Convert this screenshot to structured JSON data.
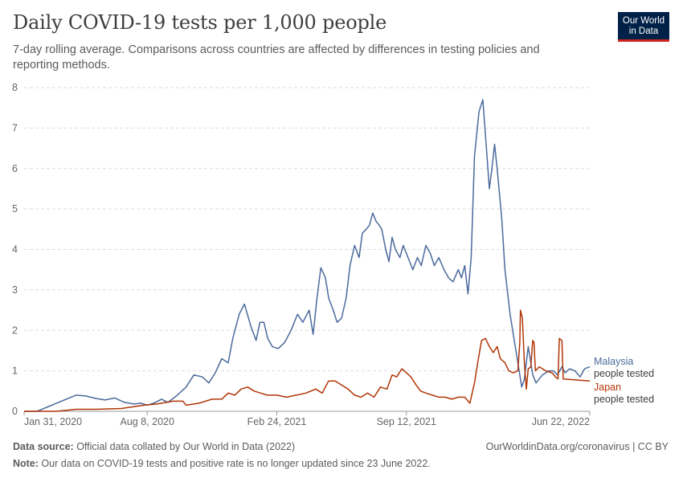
{
  "header": {
    "title": "Daily COVID-19 tests per 1,000 people",
    "subtitle": "7-day rolling average. Comparisons across countries are affected by differences in testing policies and reporting methods."
  },
  "logo": {
    "line1": "Our World",
    "line2": "in Data",
    "bg_color": "#002147",
    "accent_color": "#ce261e"
  },
  "footer": {
    "source_label": "Data source:",
    "source_text": " Official data collated by Our World in Data (2022)",
    "url_text": "OurWorldinData.org/coronavirus | CC BY",
    "note_label": "Note:",
    "note_text": " Our data on COVID-19 tests and positive rate is no longer updated since 23 June 2022."
  },
  "chart_data": {
    "type": "line",
    "title": "Daily COVID-19 tests per 1,000 people",
    "xlabel": "",
    "ylabel": "",
    "ylim": [
      0,
      8
    ],
    "y_ticks": [
      0,
      1,
      2,
      3,
      4,
      5,
      6,
      7,
      8
    ],
    "x_unit": "days since Jan 31, 2020",
    "xlim": [
      0,
      873
    ],
    "x_tick_labels": [
      "Jan 31, 2020",
      "Aug 8, 2020",
      "Feb 24, 2021",
      "Sep 12, 2021",
      "Jun 22, 2022"
    ],
    "x_tick_values": [
      0,
      190,
      390,
      590,
      873
    ],
    "grid": "horizontal dashed",
    "series": [
      {
        "name": "Malaysia",
        "sublabel": "people tested",
        "color": "#4c6a9c",
        "points": [
          [
            0,
            0
          ],
          [
            20,
            0
          ],
          [
            35,
            0.1
          ],
          [
            50,
            0.2
          ],
          [
            65,
            0.3
          ],
          [
            80,
            0.4
          ],
          [
            95,
            0.38
          ],
          [
            110,
            0.32
          ],
          [
            125,
            0.28
          ],
          [
            140,
            0.33
          ],
          [
            155,
            0.22
          ],
          [
            170,
            0.18
          ],
          [
            180,
            0.2
          ],
          [
            190,
            0.15
          ],
          [
            200,
            0.2
          ],
          [
            212,
            0.3
          ],
          [
            222,
            0.22
          ],
          [
            235,
            0.38
          ],
          [
            250,
            0.6
          ],
          [
            262,
            0.9
          ],
          [
            275,
            0.85
          ],
          [
            285,
            0.7
          ],
          [
            295,
            0.95
          ],
          [
            305,
            1.3
          ],
          [
            315,
            1.2
          ],
          [
            322,
            1.8
          ],
          [
            332,
            2.4
          ],
          [
            340,
            2.65
          ],
          [
            350,
            2.1
          ],
          [
            358,
            1.75
          ],
          [
            364,
            2.2
          ],
          [
            370,
            2.2
          ],
          [
            376,
            1.8
          ],
          [
            383,
            1.6
          ],
          [
            392,
            1.55
          ],
          [
            402,
            1.7
          ],
          [
            412,
            2.0
          ],
          [
            422,
            2.4
          ],
          [
            430,
            2.2
          ],
          [
            440,
            2.5
          ],
          [
            446,
            1.9
          ],
          [
            452,
            2.8
          ],
          [
            458,
            3.55
          ],
          [
            465,
            3.3
          ],
          [
            470,
            2.8
          ],
          [
            477,
            2.5
          ],
          [
            483,
            2.2
          ],
          [
            490,
            2.3
          ],
          [
            497,
            2.8
          ],
          [
            503,
            3.6
          ],
          [
            510,
            4.1
          ],
          [
            517,
            3.8
          ],
          [
            522,
            4.4
          ],
          [
            528,
            4.5
          ],
          [
            533,
            4.6
          ],
          [
            538,
            4.9
          ],
          [
            543,
            4.7
          ],
          [
            548,
            4.6
          ],
          [
            552,
            4.5
          ],
          [
            558,
            4.0
          ],
          [
            563,
            3.7
          ],
          [
            568,
            4.3
          ],
          [
            573,
            4.0
          ],
          [
            580,
            3.8
          ],
          [
            585,
            4.1
          ],
          [
            590,
            3.9
          ],
          [
            595,
            3.7
          ],
          [
            600,
            3.5
          ],
          [
            607,
            3.8
          ],
          [
            613,
            3.6
          ],
          [
            620,
            4.1
          ],
          [
            627,
            3.9
          ],
          [
            633,
            3.6
          ],
          [
            640,
            3.8
          ],
          [
            648,
            3.5
          ],
          [
            655,
            3.3
          ],
          [
            662,
            3.2
          ],
          [
            670,
            3.5
          ],
          [
            675,
            3.3
          ],
          [
            680,
            3.6
          ],
          [
            685,
            2.9
          ],
          [
            690,
            3.8
          ],
          [
            695,
            6.3
          ],
          [
            702,
            7.4
          ],
          [
            708,
            7.7
          ],
          [
            713,
            6.6
          ],
          [
            718,
            5.5
          ],
          [
            722,
            6.0
          ],
          [
            726,
            6.6
          ],
          [
            730,
            6.0
          ],
          [
            737,
            4.8
          ],
          [
            742,
            3.5
          ],
          [
            750,
            2.4
          ],
          [
            756,
            1.8
          ],
          [
            760,
            1.4
          ],
          [
            765,
            0.9
          ],
          [
            768,
            0.6
          ],
          [
            772,
            0.8
          ],
          [
            778,
            1.6
          ],
          [
            785,
            0.9
          ],
          [
            790,
            0.7
          ],
          [
            800,
            0.9
          ],
          [
            810,
            1.0
          ],
          [
            817,
            1.0
          ],
          [
            823,
            0.9
          ],
          [
            830,
            1.1
          ],
          [
            835,
            0.95
          ],
          [
            842,
            1.05
          ],
          [
            850,
            1.0
          ],
          [
            858,
            0.85
          ],
          [
            865,
            1.05
          ],
          [
            873,
            1.1
          ]
        ]
      },
      {
        "name": "Japan",
        "sublabel": "people tested",
        "color": "#b13507",
        "points": [
          [
            0,
            0
          ],
          [
            50,
            0
          ],
          [
            80,
            0.05
          ],
          [
            110,
            0.05
          ],
          [
            150,
            0.07
          ],
          [
            185,
            0.15
          ],
          [
            205,
            0.18
          ],
          [
            230,
            0.25
          ],
          [
            245,
            0.25
          ],
          [
            250,
            0.15
          ],
          [
            270,
            0.2
          ],
          [
            290,
            0.3
          ],
          [
            305,
            0.3
          ],
          [
            315,
            0.45
          ],
          [
            325,
            0.4
          ],
          [
            335,
            0.55
          ],
          [
            345,
            0.6
          ],
          [
            355,
            0.5
          ],
          [
            365,
            0.45
          ],
          [
            375,
            0.4
          ],
          [
            390,
            0.4
          ],
          [
            405,
            0.35
          ],
          [
            420,
            0.4
          ],
          [
            435,
            0.45
          ],
          [
            450,
            0.55
          ],
          [
            460,
            0.45
          ],
          [
            470,
            0.75
          ],
          [
            480,
            0.75
          ],
          [
            490,
            0.65
          ],
          [
            500,
            0.55
          ],
          [
            510,
            0.4
          ],
          [
            520,
            0.35
          ],
          [
            530,
            0.45
          ],
          [
            540,
            0.35
          ],
          [
            550,
            0.6
          ],
          [
            560,
            0.55
          ],
          [
            568,
            0.9
          ],
          [
            575,
            0.85
          ],
          [
            583,
            1.05
          ],
          [
            590,
            0.95
          ],
          [
            597,
            0.85
          ],
          [
            605,
            0.65
          ],
          [
            612,
            0.5
          ],
          [
            620,
            0.45
          ],
          [
            630,
            0.4
          ],
          [
            640,
            0.35
          ],
          [
            650,
            0.35
          ],
          [
            660,
            0.3
          ],
          [
            670,
            0.35
          ],
          [
            680,
            0.35
          ],
          [
            688,
            0.2
          ],
          [
            695,
            0.7
          ],
          [
            700,
            1.2
          ],
          [
            706,
            1.75
          ],
          [
            712,
            1.8
          ],
          [
            718,
            1.6
          ],
          [
            724,
            1.45
          ],
          [
            730,
            1.6
          ],
          [
            735,
            1.3
          ],
          [
            742,
            1.2
          ],
          [
            748,
            1.0
          ],
          [
            755,
            0.95
          ],
          [
            762,
            1.0
          ],
          [
            765,
            1.7
          ],
          [
            766,
            2.5
          ],
          [
            769,
            2.3
          ],
          [
            772,
            1.2
          ],
          [
            775,
            0.55
          ],
          [
            778,
            1.05
          ],
          [
            782,
            1.1
          ],
          [
            785,
            1.75
          ],
          [
            787,
            1.7
          ],
          [
            789,
            1.0
          ],
          [
            795,
            1.1
          ],
          [
            805,
            1.0
          ],
          [
            815,
            0.95
          ],
          [
            820,
            0.85
          ],
          [
            824,
            0.8
          ],
          [
            826,
            1.8
          ],
          [
            830,
            1.75
          ],
          [
            832,
            0.8
          ],
          [
            873,
            0.75
          ]
        ]
      }
    ]
  }
}
